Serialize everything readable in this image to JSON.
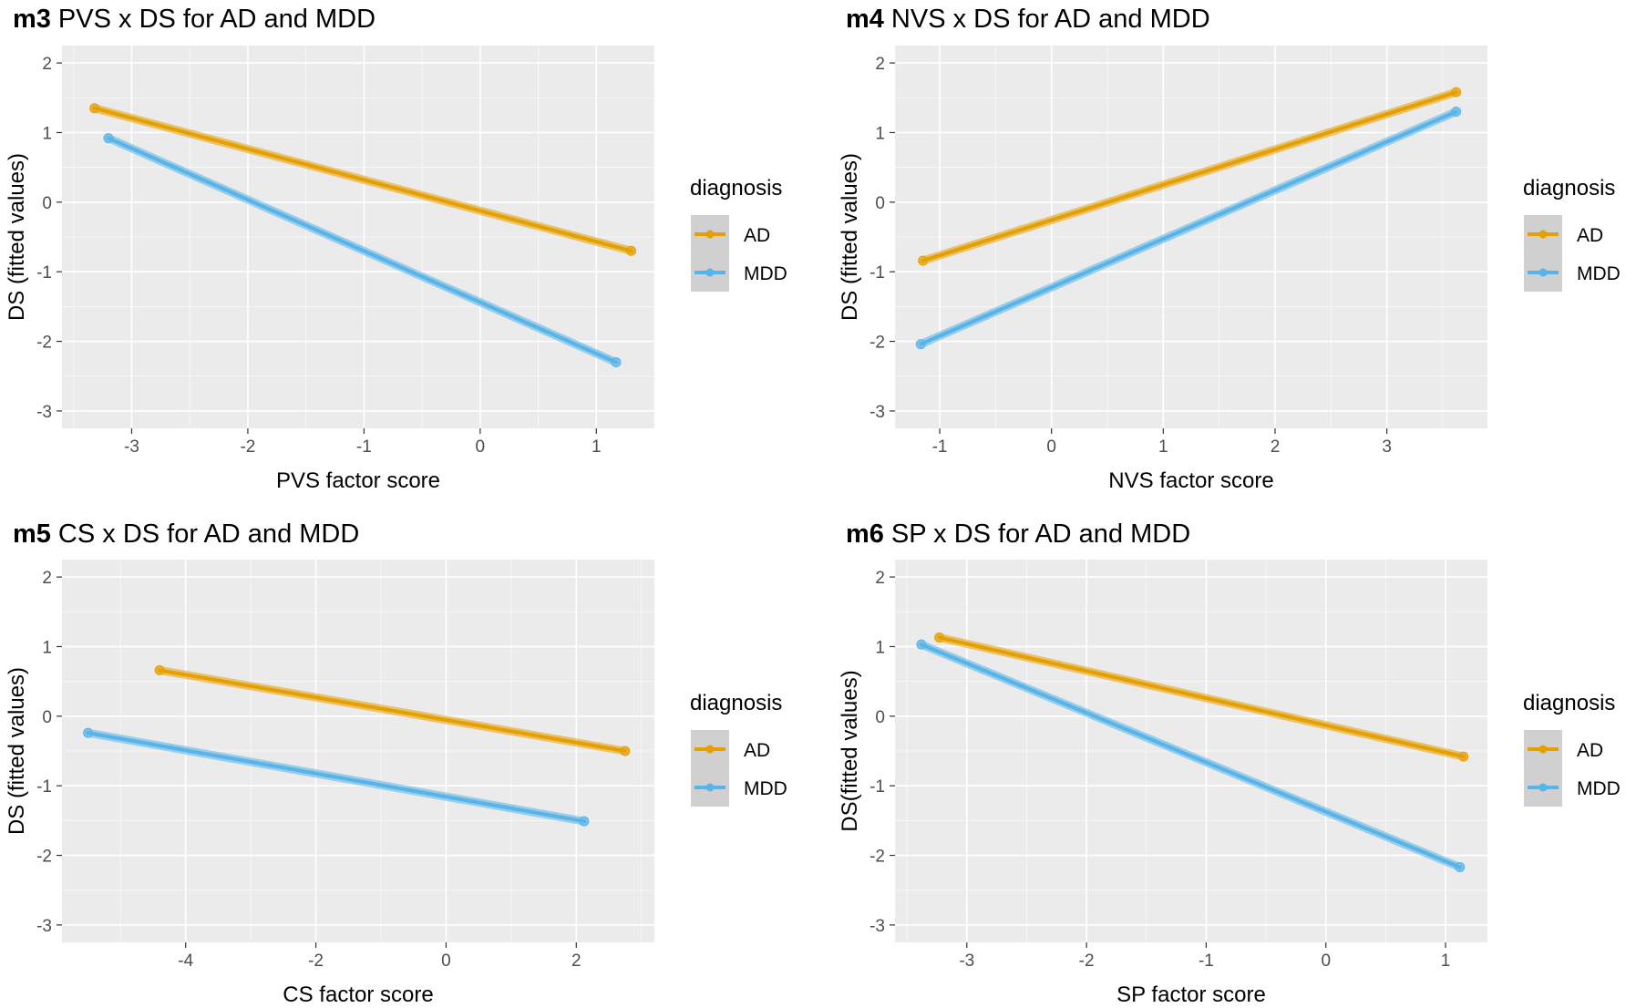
{
  "panels": [
    {
      "tag": "m3",
      "title": "PVS x DS for AD and MDD",
      "xlabel": "PVS factor score",
      "ylabel": "DS (fitted values)",
      "xlim": [
        -3.6,
        1.5
      ],
      "ylim": [
        -3.25,
        2.25
      ],
      "xticks": [
        -3,
        -2,
        -1,
        0,
        1
      ],
      "yticks": [
        -3,
        -2,
        -1,
        0,
        1,
        2
      ],
      "legend_title": "diagnosis",
      "series": [
        {
          "name": "AD",
          "x_start": -3.32,
          "y_start": 1.35,
          "x_end": 1.3,
          "y_end": -0.7
        },
        {
          "name": "MDD",
          "x_start": -3.2,
          "y_start": 0.92,
          "x_end": 1.17,
          "y_end": -2.3
        }
      ]
    },
    {
      "tag": "m4",
      "title": "NVS x DS for AD and MDD",
      "xlabel": "NVS factor score",
      "ylabel": "DS (fitted values)",
      "xlim": [
        -1.4,
        3.9
      ],
      "ylim": [
        -3.25,
        2.25
      ],
      "xticks": [
        -1,
        0,
        1,
        2,
        3
      ],
      "yticks": [
        -3,
        -2,
        -1,
        0,
        1,
        2
      ],
      "legend_title": "diagnosis",
      "series": [
        {
          "name": "AD",
          "x_start": -1.15,
          "y_start": -0.84,
          "x_end": 3.62,
          "y_end": 1.58
        },
        {
          "name": "MDD",
          "x_start": -1.17,
          "y_start": -2.04,
          "x_end": 3.62,
          "y_end": 1.3
        }
      ]
    },
    {
      "tag": "m5",
      "title": "CS x DS for AD and MDD",
      "xlabel": "CS factor score",
      "ylabel": "DS (fitted values)",
      "xlim": [
        -5.9,
        3.2
      ],
      "ylim": [
        -3.25,
        2.25
      ],
      "xticks": [
        -4,
        -2,
        0,
        2
      ],
      "yticks": [
        -3,
        -2,
        -1,
        0,
        1,
        2
      ],
      "legend_title": "diagnosis",
      "series": [
        {
          "name": "AD",
          "x_start": -4.4,
          "y_start": 0.66,
          "x_end": 2.75,
          "y_end": -0.5
        },
        {
          "name": "MDD",
          "x_start": -5.5,
          "y_start": -0.24,
          "x_end": 2.12,
          "y_end": -1.51
        }
      ]
    },
    {
      "tag": "m6",
      "title": "SP x DS for AD and MDD",
      "xlabel": "SP factor score",
      "ylabel": "DS(fitted values)",
      "xlim": [
        -3.6,
        1.35
      ],
      "ylim": [
        -3.25,
        2.25
      ],
      "xticks": [
        -3,
        -2,
        -1,
        0,
        1
      ],
      "yticks": [
        -3,
        -2,
        -1,
        0,
        1,
        2
      ],
      "legend_title": "diagnosis",
      "series": [
        {
          "name": "AD",
          "x_start": -3.23,
          "y_start": 1.13,
          "x_end": 1.15,
          "y_end": -0.58
        },
        {
          "name": "MDD",
          "x_start": -3.38,
          "y_start": 1.03,
          "x_end": 1.12,
          "y_end": -2.17
        }
      ]
    }
  ],
  "colors": {
    "AD": "#E69F00",
    "MDD": "#56B4E9",
    "panel_bg": "#EBEBEB",
    "grid": "#FFFFFF",
    "legend_key_bg": "#D0D0D0",
    "axis_text": "#4D4D4D"
  },
  "chart_data": [
    {
      "type": "line",
      "title": "m3 PVS x DS for AD and MDD",
      "xlabel": "PVS factor score",
      "ylabel": "DS (fitted values)",
      "xlim": [
        -3.6,
        1.5
      ],
      "ylim": [
        -3.25,
        2.25
      ],
      "legend": "right",
      "grid": true,
      "series": [
        {
          "name": "AD",
          "x": [
            -3.32,
            1.3
          ],
          "y": [
            1.35,
            -0.7
          ]
        },
        {
          "name": "MDD",
          "x": [
            -3.2,
            1.17
          ],
          "y": [
            0.92,
            -2.3
          ]
        }
      ]
    },
    {
      "type": "line",
      "title": "m4 NVS x DS for AD and MDD",
      "xlabel": "NVS factor score",
      "ylabel": "DS (fitted values)",
      "xlim": [
        -1.4,
        3.9
      ],
      "ylim": [
        -3.25,
        2.25
      ],
      "legend": "right",
      "grid": true,
      "series": [
        {
          "name": "AD",
          "x": [
            -1.15,
            3.62
          ],
          "y": [
            -0.84,
            1.58
          ]
        },
        {
          "name": "MDD",
          "x": [
            -1.17,
            3.62
          ],
          "y": [
            -2.04,
            1.3
          ]
        }
      ]
    },
    {
      "type": "line",
      "title": "m5 CS x DS for AD and MDD",
      "xlabel": "CS factor score",
      "ylabel": "DS (fitted values)",
      "xlim": [
        -5.9,
        3.2
      ],
      "ylim": [
        -3.25,
        2.25
      ],
      "legend": "right",
      "grid": true,
      "series": [
        {
          "name": "AD",
          "x": [
            -4.4,
            2.75
          ],
          "y": [
            0.66,
            -0.5
          ]
        },
        {
          "name": "MDD",
          "x": [
            -5.5,
            2.12
          ],
          "y": [
            -0.24,
            -1.51
          ]
        }
      ]
    },
    {
      "type": "line",
      "title": "m6 SP x DS for AD and MDD",
      "xlabel": "SP factor score",
      "ylabel": "DS(fitted values)",
      "xlim": [
        -3.6,
        1.35
      ],
      "ylim": [
        -3.25,
        2.25
      ],
      "legend": "right",
      "grid": true,
      "series": [
        {
          "name": "AD",
          "x": [
            -3.23,
            1.15
          ],
          "y": [
            1.13,
            -0.58
          ]
        },
        {
          "name": "MDD",
          "x": [
            -3.38,
            1.12
          ],
          "y": [
            1.03,
            -2.17
          ]
        }
      ]
    }
  ]
}
